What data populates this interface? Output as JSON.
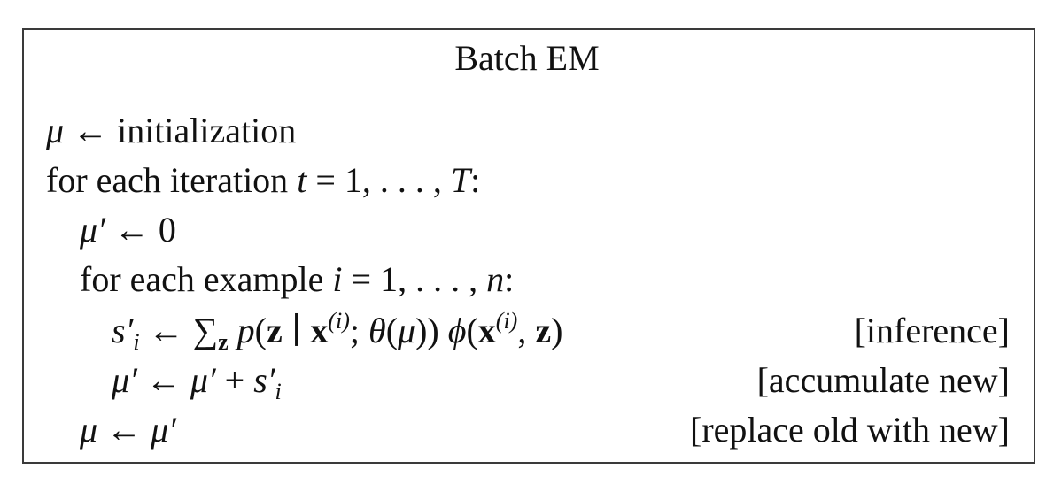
{
  "title": "Batch EM",
  "lines": {
    "l1": {
      "text": "initialization"
    },
    "l2": {
      "text": "for each iteration"
    },
    "l4": {
      "text": "for each example"
    }
  },
  "comments": {
    "c5": "[inference]",
    "c6": "[accumulate new]",
    "c7": "[replace old with new]"
  },
  "symbols": {
    "mu": "μ",
    "mu_prime": "μ′",
    "arrow": "←",
    "eq": "=",
    "one": "1",
    "zero": "0",
    "ellipsis": ", . . . ,",
    "T": "T",
    "n": "n",
    "t": "t",
    "i": "i",
    "colon": ":",
    "sum": "∑",
    "z": "z",
    "p": "p",
    "bar": "∣",
    "x": "x",
    "sup_i": "(i)",
    "semicolon": ";",
    "theta": "θ",
    "phi": "ϕ",
    "plus": "+",
    "s": "s",
    "prime": "′",
    "lparen": "(",
    "rparen": ")",
    "comma": ","
  }
}
